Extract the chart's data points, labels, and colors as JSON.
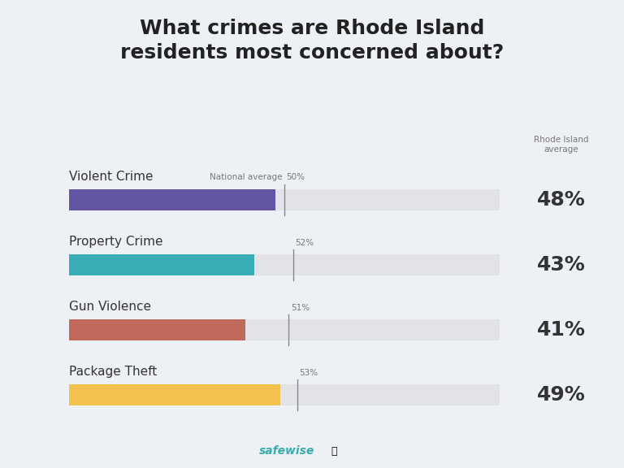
{
  "title": "What crimes are Rhode Island\nresidents most concerned about?",
  "categories": [
    "Violent Crime",
    "Property Crime",
    "Gun Violence",
    "Package Theft"
  ],
  "ri_values": [
    48,
    43,
    41,
    49
  ],
  "national_averages": [
    50,
    52,
    51,
    53
  ],
  "bar_colors": [
    "#6355a4",
    "#39adb5",
    "#c0695a",
    "#f2c14e"
  ],
  "bar_max": 100,
  "background_color": "#edf0f5",
  "bar_bg_color": "#e2e2e8",
  "national_avg_label": "National average",
  "ri_label_line1": "Rhode Island",
  "ri_label_line2": "average",
  "safewise_text": "safewise",
  "title_fontsize": 18,
  "category_fontsize": 11,
  "ri_value_fontsize": 18,
  "national_avg_fontsize": 7.5,
  "text_color": "#333333",
  "subtext_color": "#777777"
}
